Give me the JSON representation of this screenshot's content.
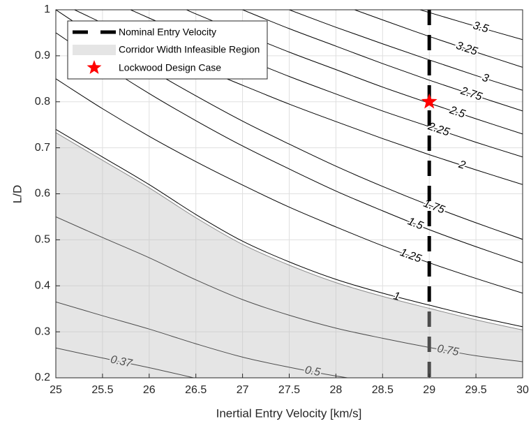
{
  "chart_data": {
    "type": "contour",
    "xlabel": "Inertial Entry Velocity [km/s]",
    "ylabel": "L/D",
    "xlim": [
      25,
      30
    ],
    "ylim": [
      0.2,
      1
    ],
    "xticks": [
      25,
      25.5,
      26,
      26.5,
      27,
      27.5,
      28,
      28.5,
      29,
      29.5,
      30
    ],
    "yticks": [
      0.2,
      0.3,
      0.4,
      0.5,
      0.6,
      0.7,
      0.8,
      0.9,
      1
    ],
    "grid": true,
    "legend": "upper left",
    "contour_color": "#000000",
    "contours": [
      {
        "level": 3.5,
        "x": [
          28.9,
          29,
          29.5,
          30
        ],
        "y": [
          1,
          0.994,
          0.964,
          0.935
        ]
      },
      {
        "level": 3.25,
        "x": [
          28.2,
          28.5,
          29,
          29.5,
          30
        ],
        "y": [
          1,
          0.978,
          0.942,
          0.908,
          0.875
        ]
      },
      {
        "level": 3,
        "x": [
          27.5,
          28,
          28.5,
          29,
          29.5,
          30
        ],
        "y": [
          1,
          0.962,
          0.926,
          0.891,
          0.857,
          0.825
        ]
      },
      {
        "level": 2.75,
        "x": [
          27,
          27.5,
          28,
          28.5,
          29,
          29.5,
          30
        ],
        "y": [
          1,
          0.959,
          0.921,
          0.883,
          0.847,
          0.813,
          0.78
        ]
      },
      {
        "level": 2.5,
        "x": [
          26.4,
          26.5,
          27,
          27.5,
          28,
          28.5,
          29,
          29.5,
          30
        ],
        "y": [
          1,
          0.991,
          0.949,
          0.908,
          0.87,
          0.832,
          0.797,
          0.763,
          0.73
        ]
      },
      {
        "level": 2.25,
        "x": [
          25.8,
          26,
          26.5,
          27,
          27.5,
          28,
          28.5,
          29,
          29.5,
          30
        ],
        "y": [
          1,
          0.982,
          0.938,
          0.896,
          0.855,
          0.817,
          0.78,
          0.746,
          0.712,
          0.68
        ]
      },
      {
        "level": 2,
        "x": [
          25.2,
          25.5,
          26,
          26.5,
          27,
          27.5,
          28,
          28.5,
          29,
          29.5,
          30
        ],
        "y": [
          1,
          0.971,
          0.923,
          0.878,
          0.836,
          0.795,
          0.757,
          0.72,
          0.685,
          0.652,
          0.62
        ]
      },
      {
        "level": 1.75,
        "x": [
          25,
          25.5,
          26,
          26.5,
          27,
          27.5,
          28,
          28.5,
          29,
          29.5,
          30
        ],
        "y": [
          1,
          0.933,
          0.871,
          0.813,
          0.758,
          0.708,
          0.66,
          0.616,
          0.575,
          0.537,
          0.501
        ]
      },
      {
        "level": 1.5,
        "x": [
          25,
          25.5,
          26,
          26.5,
          27,
          27.5,
          28,
          28.5,
          29,
          29.5,
          30
        ],
        "y": [
          0.95,
          0.882,
          0.818,
          0.759,
          0.704,
          0.654,
          0.606,
          0.563,
          0.522,
          0.485,
          0.45
        ]
      },
      {
        "level": 1.25,
        "x": [
          25,
          25.5,
          26,
          26.5,
          27,
          27.5,
          28,
          28.5,
          29,
          29.5,
          30
        ],
        "y": [
          0.85,
          0.785,
          0.725,
          0.67,
          0.619,
          0.571,
          0.528,
          0.487,
          0.45,
          0.416,
          0.384
        ]
      },
      {
        "level": 1,
        "x": [
          25,
          25.5,
          26,
          26.5,
          27,
          27.5,
          28,
          28.5,
          29,
          29.5,
          30
        ],
        "y": [
          0.74,
          0.68,
          0.62,
          0.555,
          0.497,
          0.452,
          0.414,
          0.384,
          0.358,
          0.333,
          0.311
        ]
      },
      {
        "level": 0.75,
        "x": [
          25,
          25.5,
          26,
          26.5,
          27,
          27.5,
          28,
          28.5,
          29,
          29.5,
          30
        ],
        "y": [
          0.55,
          0.505,
          0.461,
          0.413,
          0.37,
          0.336,
          0.308,
          0.286,
          0.266,
          0.248,
          0.235
        ]
      },
      {
        "level": 0.5,
        "x": [
          25,
          25.5,
          26,
          26.5,
          27,
          27.5,
          28,
          28.5
        ],
        "y": [
          0.365,
          0.335,
          0.306,
          0.274,
          0.245,
          0.223,
          0.204,
          0.189
        ]
      },
      {
        "level": 0.37,
        "x": [
          25,
          25.5,
          26,
          26.5
        ],
        "y": [
          0.265,
          0.243,
          0.222,
          0.199
        ]
      }
    ],
    "region": {
      "name": "Corridor Width Infeasible Region",
      "color": "#bfbfbf",
      "opacity": 0.4,
      "x": [
        25,
        25.5,
        26,
        26.5,
        27,
        27.5,
        28,
        28.5,
        29,
        29.5,
        30
      ],
      "y": [
        0.733,
        0.673,
        0.613,
        0.548,
        0.49,
        0.445,
        0.407,
        0.377,
        0.351,
        0.326,
        0.304
      ]
    },
    "reference_line": {
      "name": "Nominal Entry Velocity",
      "x": 29,
      "color": "#000000"
    },
    "marker": {
      "name": "Lockwood Design Case",
      "x": 29,
      "y": 0.8,
      "color": "#ff0000"
    }
  }
}
